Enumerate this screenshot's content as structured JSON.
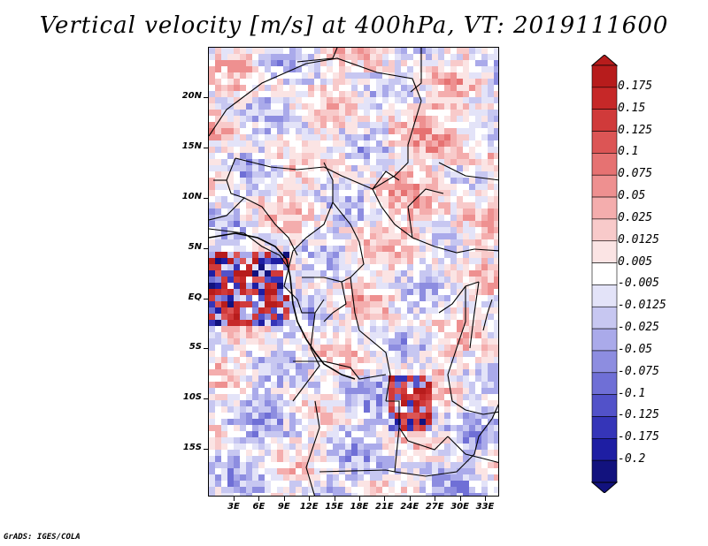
{
  "title": "Vertical velocity [m/s] at 400hPa, VT: 2019111600",
  "credit": "GrADS: IGES/COLA",
  "map": {
    "variable": "Vertical velocity",
    "units": "m/s",
    "level": "400hPa",
    "valid_time": "2019111600",
    "lat_labels": [
      "20N",
      "15N",
      "10N",
      "5N",
      "EQ",
      "5S",
      "10S",
      "15S"
    ],
    "lon_labels": [
      "3E",
      "6E",
      "9E",
      "12E",
      "15E",
      "18E",
      "21E",
      "24E",
      "27E",
      "30E",
      "33E"
    ]
  },
  "colorbar": {
    "labels": [
      "0.175",
      "0.15",
      "0.125",
      "0.1",
      "0.075",
      "0.05",
      "0.025",
      "0.0125",
      "0.005",
      "-0.005",
      "-0.0125",
      "-0.025",
      "-0.05",
      "-0.075",
      "-0.1",
      "-0.125",
      "-0.175",
      "-0.2"
    ],
    "colors": [
      "#b71c1c",
      "#c62828",
      "#d03a3a",
      "#dc5555",
      "#e67272",
      "#ee9090",
      "#f4adad",
      "#f8caca",
      "#fbe4e4",
      "#ffffff",
      "#e3e3f8",
      "#c7c7f1",
      "#aaaaea",
      "#8d8de0",
      "#6f6fd6",
      "#5252c9",
      "#3535b8",
      "#1e1ea3",
      "#12127e"
    ]
  }
}
